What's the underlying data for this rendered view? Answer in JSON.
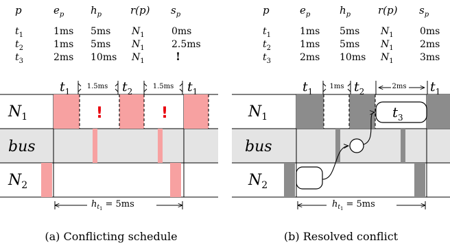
{
  "panels": [
    {
      "table": {
        "headers": [
          {
            "base": "p",
            "sub": ""
          },
          {
            "base": "e",
            "sub": "p"
          },
          {
            "base": "h",
            "sub": "p"
          },
          {
            "base": "r(p)",
            "sub": ""
          },
          {
            "base": "s",
            "sub": "p"
          }
        ],
        "rows": [
          {
            "p": {
              "base": "t",
              "sub": "1"
            },
            "e": "1ms",
            "h": "5ms",
            "r": {
              "base": "N",
              "sub": "1"
            },
            "s": "0ms"
          },
          {
            "p": {
              "base": "t",
              "sub": "2"
            },
            "e": "1ms",
            "h": "5ms",
            "r": {
              "base": "N",
              "sub": "1"
            },
            "s": "2.5ms"
          },
          {
            "p": {
              "base": "t",
              "sub": "3"
            },
            "e": "2ms",
            "h": "10ms",
            "r": {
              "base": "N",
              "sub": "1"
            },
            "s": "!"
          }
        ]
      },
      "timeline_labels": {
        "t1a": {
          "base": "t",
          "sub": "1"
        },
        "gap1": "1.5ms",
        "t2": {
          "base": "t",
          "sub": "2"
        },
        "gap2": "1.5ms",
        "t1b": {
          "base": "t",
          "sub": "1"
        }
      },
      "rows": [
        {
          "base": "N",
          "sub": "1"
        },
        {
          "base": "bus",
          "sub": ""
        },
        {
          "base": "N",
          "sub": "2"
        }
      ],
      "conflict_marks": [
        "!",
        "!"
      ],
      "hyperperiod": {
        "base": "h",
        "sub": "t",
        "subsub": "1",
        "rest": "= 5ms"
      },
      "caption": "(a) Conflicting schedule"
    },
    {
      "table": {
        "headers": [
          {
            "base": "p",
            "sub": ""
          },
          {
            "base": "e",
            "sub": "p"
          },
          {
            "base": "h",
            "sub": "p"
          },
          {
            "base": "r(p)",
            "sub": ""
          },
          {
            "base": "s",
            "sub": "p"
          }
        ],
        "rows": [
          {
            "p": {
              "base": "t",
              "sub": "1"
            },
            "e": "1ms",
            "h": "5ms",
            "r": {
              "base": "N",
              "sub": "1"
            },
            "s": "0ms"
          },
          {
            "p": {
              "base": "t",
              "sub": "2"
            },
            "e": "1ms",
            "h": "5ms",
            "r": {
              "base": "N",
              "sub": "1"
            },
            "s": "2ms"
          },
          {
            "p": {
              "base": "t",
              "sub": "3"
            },
            "e": "2ms",
            "h": "10ms",
            "r": {
              "base": "N",
              "sub": "1"
            },
            "s": "3ms"
          }
        ]
      },
      "timeline_labels": {
        "t1a": {
          "base": "t",
          "sub": "1"
        },
        "gap1": "1ms",
        "t2": {
          "base": "t",
          "sub": "2"
        },
        "gap2": "2ms",
        "t1b": {
          "base": "t",
          "sub": "1"
        }
      },
      "rows": [
        {
          "base": "N",
          "sub": "1"
        },
        {
          "base": "bus",
          "sub": ""
        },
        {
          "base": "N",
          "sub": "2"
        }
      ],
      "task_box": {
        "base": "t",
        "sub": "3"
      },
      "hyperperiod": {
        "base": "h",
        "sub": "t",
        "subsub": "1",
        "rest": "= 5ms"
      },
      "caption": "(b) Resolved conflict"
    }
  ],
  "colors": {
    "conflict_fill": "#f7a1a1",
    "conflict_mark": "#e8000b",
    "resolved_fill": "#8c8c8c",
    "bus_band": "#e4e4e4"
  }
}
